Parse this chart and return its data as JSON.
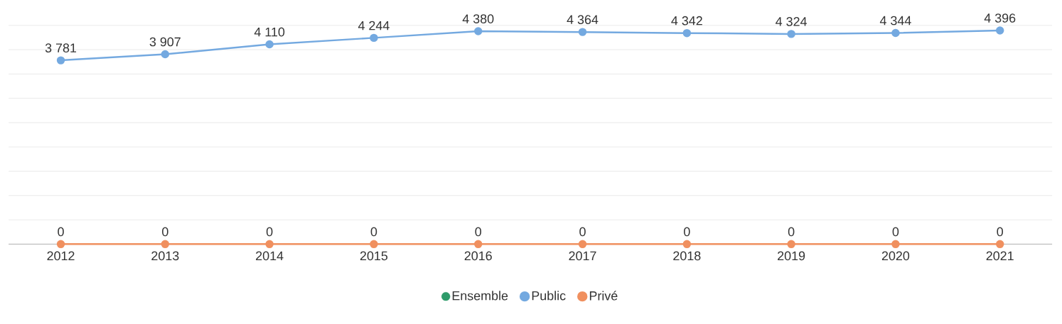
{
  "chart_data": {
    "type": "line",
    "categories": [
      "2012",
      "2013",
      "2014",
      "2015",
      "2016",
      "2017",
      "2018",
      "2019",
      "2020",
      "2021"
    ],
    "series": [
      {
        "name": "Ensemble",
        "color": "#2e9b6a",
        "values": [
          null,
          null,
          null,
          null,
          null,
          null,
          null,
          null,
          null,
          null
        ]
      },
      {
        "name": "Public",
        "color": "#74a9e0",
        "values": [
          3781,
          3907,
          4110,
          4244,
          4380,
          4364,
          4342,
          4324,
          4344,
          4396
        ],
        "value_labels": [
          "3 781",
          "3 907",
          "4 110",
          "4 244",
          "4 380",
          "4 364",
          "4 342",
          "4 324",
          "4 344",
          "4 396"
        ]
      },
      {
        "name": "Privé",
        "color": "#f0905f",
        "values": [
          0,
          0,
          0,
          0,
          0,
          0,
          0,
          0,
          0,
          0
        ],
        "value_labels": [
          "0",
          "0",
          "0",
          "0",
          "0",
          "0",
          "0",
          "0",
          "0",
          "0"
        ]
      }
    ],
    "ylim": [
      0,
      4500
    ],
    "yticks": [
      {
        "value": 0,
        "label": null
      },
      {
        "value": 500,
        "label": null
      },
      {
        "value": 1000,
        "label": null
      },
      {
        "value": 1500,
        "label": null
      },
      {
        "value": 2000,
        "label": null
      },
      {
        "value": 2500,
        "label": null
      },
      {
        "value": 3000,
        "label": null
      },
      {
        "value": 3500,
        "label": null
      },
      {
        "value": 4000,
        "label": null
      },
      {
        "value": 4500,
        "label": null
      }
    ],
    "tick_labels": "x",
    "grid": "y",
    "legend": "bottom",
    "marker": "circle",
    "line_style": "solid"
  }
}
